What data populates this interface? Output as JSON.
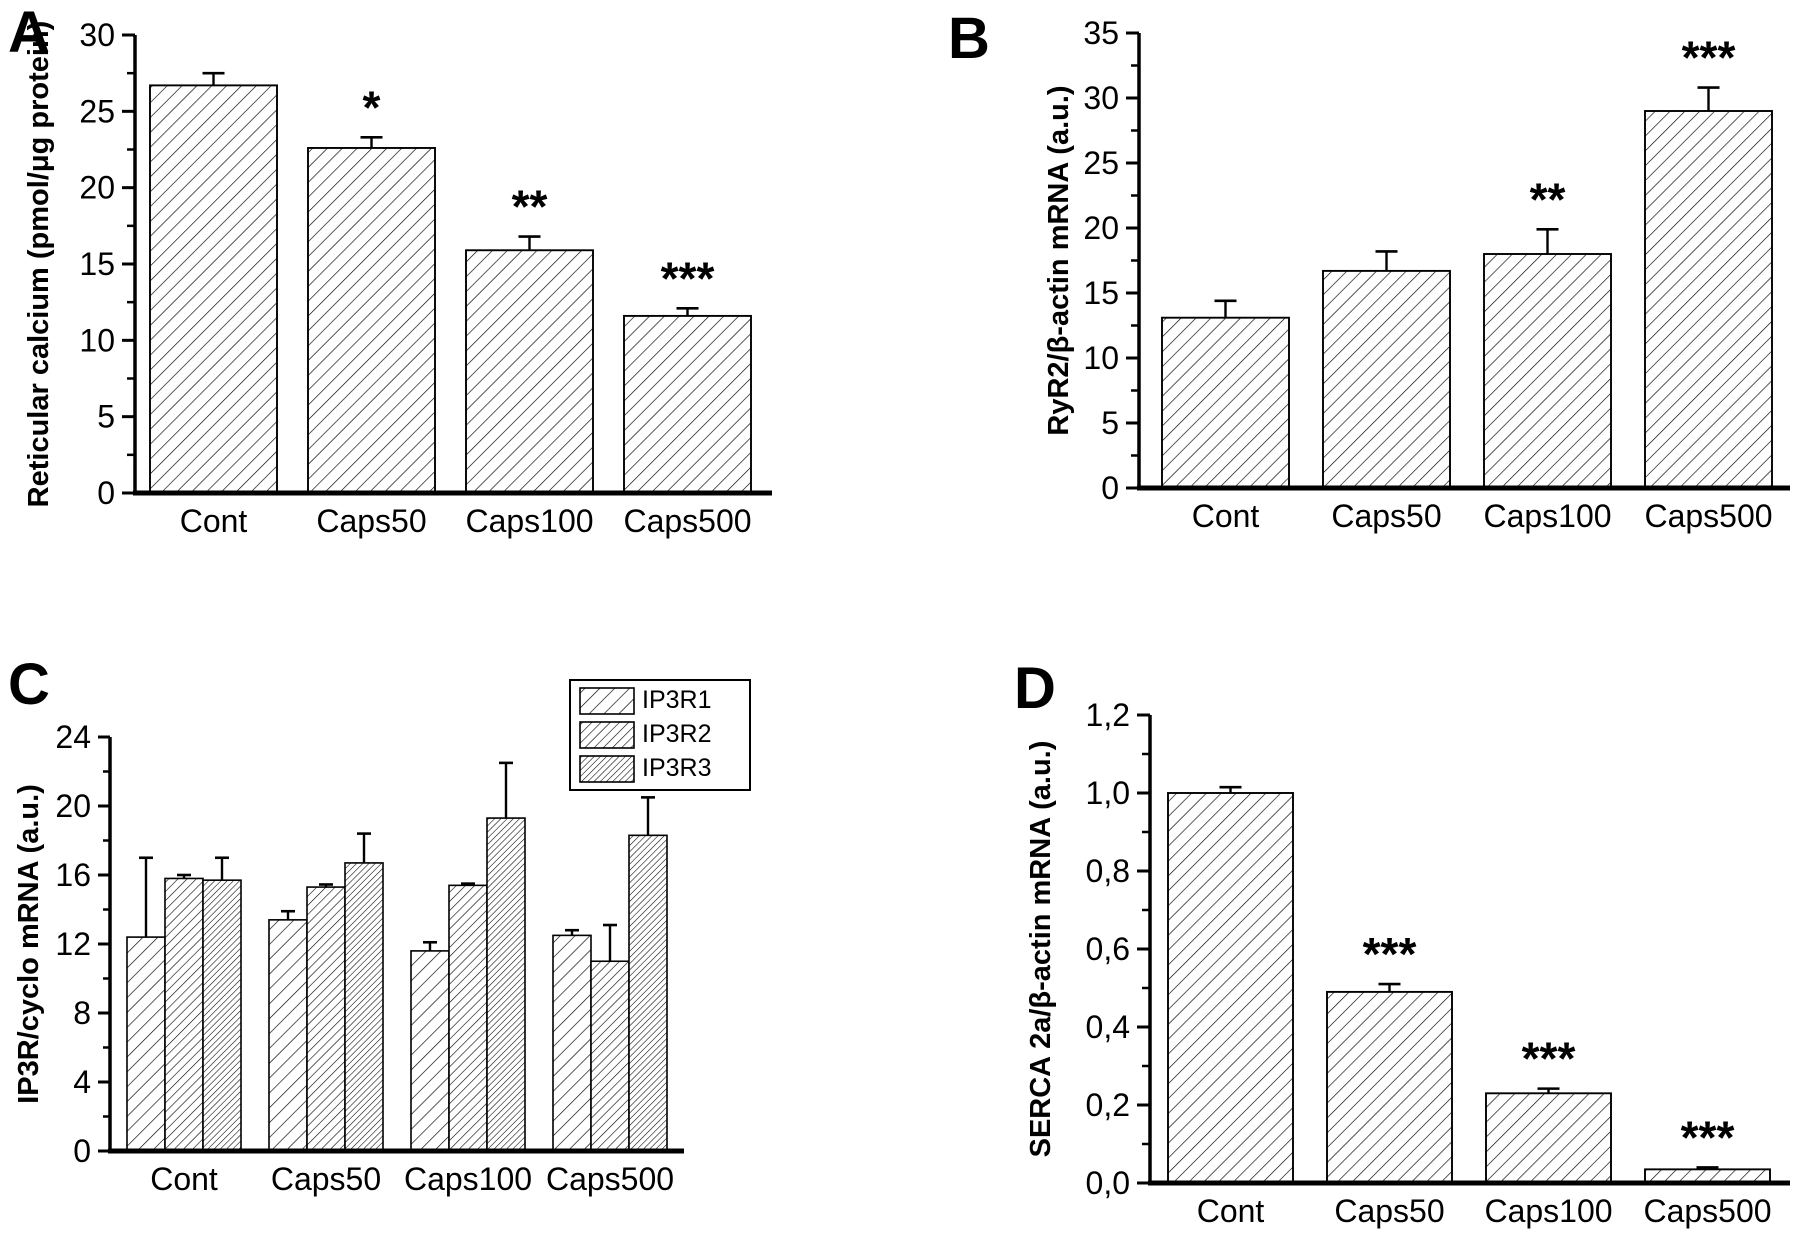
{
  "figure": {
    "background_color": "#ffffff",
    "ink_color": "#000000",
    "panels": [
      {
        "letter": "A"
      },
      {
        "letter": "B"
      },
      {
        "letter": "C"
      },
      {
        "letter": "D"
      }
    ]
  },
  "chart_data": [
    {
      "panel": "A",
      "type": "bar",
      "title": "",
      "xlabel": "",
      "ylabel": "Reticular calcium (pmol/μg protein)",
      "categories": [
        "Cont",
        "Caps50",
        "Caps100",
        "Caps500"
      ],
      "ylim": [
        0,
        30
      ],
      "ytick_labels": [
        "0",
        "5",
        "10",
        "15",
        "20",
        "25",
        "30"
      ],
      "minor_ticks": true,
      "grid": false,
      "legend": null,
      "hatch_style": "diagonal-forward",
      "series": [
        {
          "hatch": "sparse",
          "values": [
            26.7,
            22.6,
            15.9,
            11.6
          ],
          "errors_plus": [
            0.8,
            0.7,
            0.9,
            0.5
          ]
        }
      ],
      "significance": [
        "",
        "*",
        "**",
        "***"
      ]
    },
    {
      "panel": "B",
      "type": "bar",
      "title": "",
      "xlabel": "",
      "ylabel": "RyR2/β-actin mRNA (a.u.)",
      "categories": [
        "Cont",
        "Caps50",
        "Caps100",
        "Caps500"
      ],
      "ylim": [
        0,
        35
      ],
      "ytick_labels": [
        "0",
        "5",
        "10",
        "15",
        "20",
        "25",
        "30",
        "35"
      ],
      "minor_ticks": true,
      "grid": false,
      "legend": null,
      "hatch_style": "diagonal-forward",
      "series": [
        {
          "hatch": "sparse",
          "values": [
            13.1,
            16.7,
            18.0,
            29.0
          ],
          "errors_plus": [
            1.3,
            1.5,
            1.9,
            1.8
          ]
        }
      ],
      "significance": [
        "",
        "",
        "**",
        "***"
      ]
    },
    {
      "panel": "C",
      "type": "bar",
      "title": "",
      "xlabel": "",
      "ylabel": "IP3R/cyclo mRNA (a.u.)",
      "categories": [
        "Cont",
        "Caps50",
        "Caps100",
        "Caps500"
      ],
      "ylim": [
        0,
        24
      ],
      "ytick_labels": [
        "0",
        "4",
        "8",
        "12",
        "16",
        "20",
        "24"
      ],
      "minor_ticks": true,
      "grid": false,
      "legend": {
        "position": "top-right",
        "entries": [
          "IP3R1",
          "IP3R2",
          "IP3R3"
        ]
      },
      "hatch_style": "diagonal-forward",
      "series": [
        {
          "name": "IP3R1",
          "hatch": "sparse",
          "values": [
            12.4,
            13.4,
            11.6,
            12.5
          ],
          "errors_plus": [
            4.6,
            0.5,
            0.5,
            0.3
          ]
        },
        {
          "name": "IP3R2",
          "hatch": "medium",
          "values": [
            15.8,
            15.3,
            15.4,
            11.0
          ],
          "errors_plus": [
            0.2,
            0.15,
            0.1,
            2.1
          ]
        },
        {
          "name": "IP3R3",
          "hatch": "dense",
          "values": [
            15.7,
            16.7,
            19.3,
            18.3
          ],
          "errors_plus": [
            1.3,
            1.7,
            3.2,
            2.2
          ]
        }
      ],
      "significance": [
        "",
        "",
        "",
        ""
      ]
    },
    {
      "panel": "D",
      "type": "bar",
      "title": "",
      "xlabel": "",
      "ylabel": "SERCA 2a/β-actin mRNA (a.u.)",
      "categories": [
        "Cont",
        "Caps50",
        "Caps100",
        "Caps500"
      ],
      "ylim": [
        0,
        1.2
      ],
      "ytick_labels": [
        "0,0",
        "0,2",
        "0,4",
        "0,6",
        "0,8",
        "1,0",
        "1,2"
      ],
      "decimal_separator": ",",
      "minor_ticks": true,
      "grid": false,
      "legend": null,
      "hatch_style": "diagonal-forward",
      "series": [
        {
          "hatch": "sparse",
          "values": [
            1.0,
            0.49,
            0.23,
            0.035
          ],
          "errors_plus": [
            0.015,
            0.02,
            0.012,
            0.005
          ]
        }
      ],
      "significance": [
        "",
        "***",
        "***",
        "***"
      ]
    }
  ]
}
